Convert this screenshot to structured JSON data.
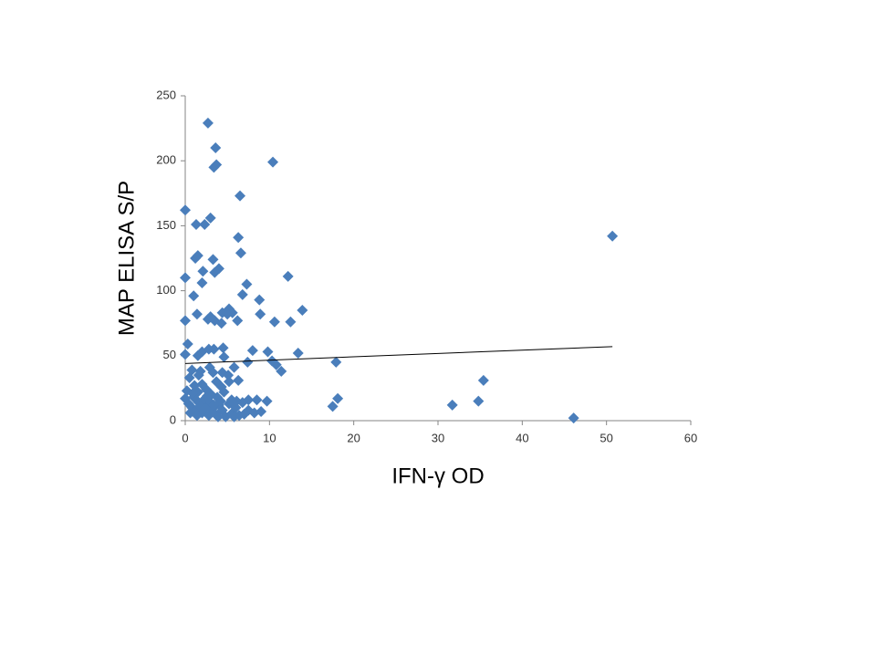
{
  "chart_data": {
    "type": "scatter",
    "xlabel": "IFN-γ OD",
    "ylabel": "MAP ELISA S/P",
    "xlim": [
      0,
      60
    ],
    "xticks": [
      0,
      10,
      20,
      30,
      40,
      50,
      60
    ],
    "ylim": [
      0,
      250
    ],
    "yticks": [
      0,
      50,
      100,
      150,
      200,
      250
    ],
    "grid": false,
    "color": "#4a7ebb",
    "x": [
      2.7,
      3.6,
      3.4,
      3.7,
      10.4,
      6.5,
      0,
      3,
      1.3,
      2.3,
      6.3,
      50.7,
      1.2,
      1.5,
      3.3,
      6.6,
      4,
      2.1,
      3.5,
      0,
      2.0,
      12.2,
      7.3,
      1,
      6.8,
      8.8,
      13.9,
      1.4,
      4.4,
      5.2,
      5.6,
      5.0,
      8.9,
      0,
      2.7,
      3,
      3.5,
      4.3,
      6.2,
      10.6,
      12.5,
      0.3,
      0,
      2,
      2.8,
      3.4,
      4.5,
      1.5,
      4.6,
      8,
      9.8,
      13.4,
      7.4,
      10.3,
      10.8,
      11.4,
      17.9,
      0.8,
      1.8,
      2.9,
      3.3,
      4.4,
      5.1,
      5.8,
      0.5,
      6.3,
      5.2,
      1.1,
      4.3,
      35.4,
      0.2,
      1.5,
      2.5,
      3.1,
      3.8,
      4.6,
      5.5,
      6.1,
      7.5,
      9.7,
      18.1,
      17.5,
      31.7,
      34.8,
      46.1,
      0,
      0.4,
      0.8,
      1.2,
      1.6,
      2.0,
      2.4,
      2.8,
      3.2,
      3.6,
      4.0,
      4.4,
      4.8,
      5.2,
      5.6,
      6.0,
      6.4,
      7.0,
      7.5,
      8.2,
      9.0,
      1.0,
      2.2,
      3.0,
      3.4,
      1.8,
      0.6,
      2.6,
      1.4,
      4.2,
      5.8,
      2.0,
      3.7,
      1.6,
      0.9,
      2.3,
      3.9,
      6.8,
      8.5
    ],
    "y": [
      229,
      210,
      195,
      197,
      199,
      173,
      162,
      156,
      151,
      151,
      141,
      142,
      125,
      127,
      124,
      129,
      117,
      115,
      114,
      110,
      106,
      111,
      105,
      96,
      97,
      93,
      85,
      82,
      83,
      86,
      83,
      82,
      82,
      77,
      78,
      80,
      77,
      75,
      77,
      76,
      76,
      59,
      51,
      53,
      55,
      55,
      56,
      50,
      49,
      54,
      53,
      52,
      45,
      46,
      43,
      38,
      45,
      39,
      38,
      41,
      37,
      37,
      35,
      41,
      33,
      31,
      30,
      27,
      26,
      31,
      23,
      22,
      24,
      20,
      18,
      22,
      16,
      15,
      16,
      15,
      17,
      11,
      12,
      15,
      2,
      17,
      13,
      10,
      8,
      14,
      6,
      11,
      4,
      9,
      5,
      12,
      8,
      3,
      13,
      6,
      10,
      4,
      5,
      8,
      6,
      7,
      18,
      16,
      14,
      12,
      11,
      6,
      19,
      4,
      15,
      3,
      28,
      30,
      35,
      21,
      9,
      3,
      14,
      16
    ],
    "trendline": {
      "x": [
        0,
        50.7
      ],
      "y": [
        44,
        57
      ]
    }
  }
}
